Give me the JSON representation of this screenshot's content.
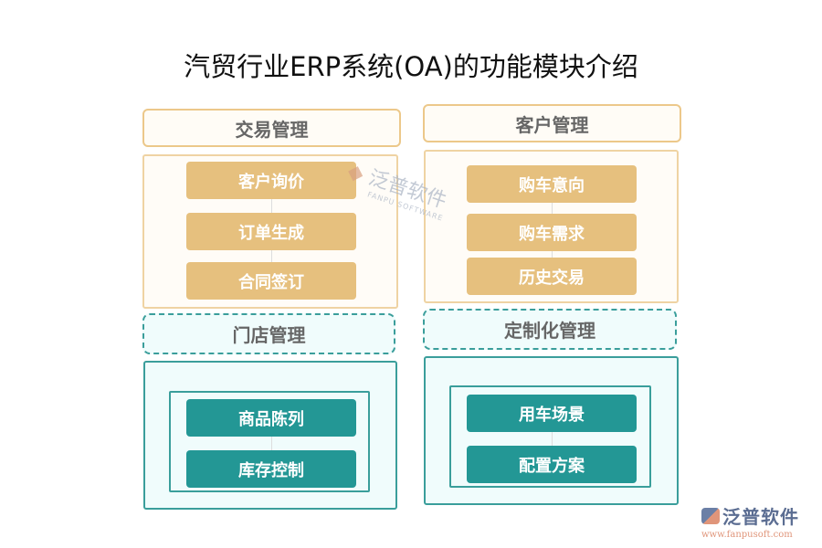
{
  "title": "汽贸行业ERP系统(OA)的功能模块介绍",
  "left": {
    "top_header": "交易管理",
    "top_items": [
      "客户询价",
      "订单生成",
      "合同签订"
    ],
    "bottom_header": "门店管理",
    "bottom_items": [
      "商品陈列",
      "库存控制"
    ]
  },
  "right": {
    "top_header": "客户管理",
    "top_items": [
      "购车意向",
      "购车需求",
      "历史交易"
    ],
    "bottom_header": "定制化管理",
    "bottom_items": [
      "用车场景",
      "配置方案"
    ]
  },
  "watermark": {
    "name": "泛普软件",
    "sub": "FANPU SOFTWARE"
  },
  "logo": {
    "name": "泛普软件",
    "url": "www.fanpusoft.com"
  },
  "colors": {
    "orange": "#e6c07e",
    "teal": "#239795"
  }
}
